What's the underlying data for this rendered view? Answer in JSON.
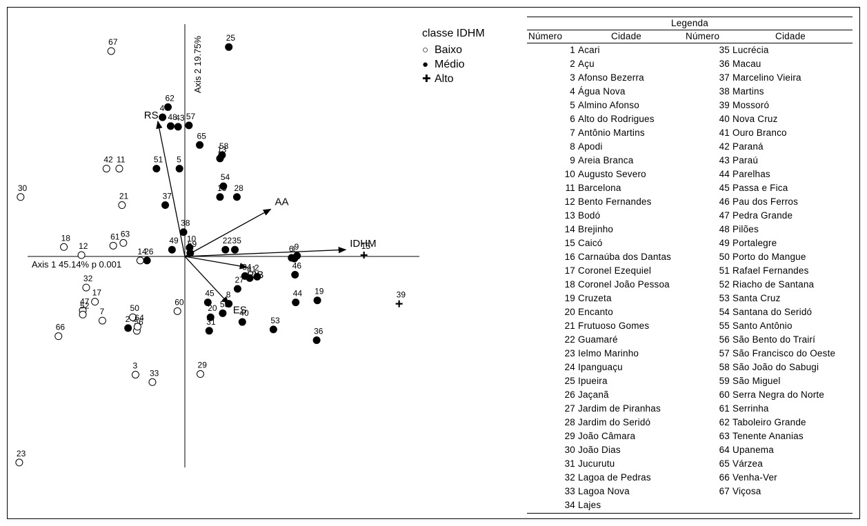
{
  "chart_data": {
    "type": "scatter",
    "title": "",
    "xlabel": "Axis 1 45.14% p 0.001",
    "ylabel": "Axis 2 19.75%",
    "legend_title": "classe IDHM",
    "legend": [
      {
        "name": "Baixo",
        "marker": "open-circle"
      },
      {
        "name": "Médio",
        "marker": "filled-circle"
      },
      {
        "name": "Alto",
        "marker": "plus"
      }
    ],
    "points": [
      {
        "label": "1",
        "x": 1.62,
        "y": -0.03,
        "class": "Médio"
      },
      {
        "label": "2",
        "x": 1.07,
        "y": -0.3,
        "class": "Médio"
      },
      {
        "label": "3",
        "x": -0.73,
        "y": -1.75,
        "class": "Baixo"
      },
      {
        "label": "4",
        "x": -0.33,
        "y": 2.06,
        "class": "Médio"
      },
      {
        "label": "5",
        "x": -0.08,
        "y": 1.3,
        "class": "Médio"
      },
      {
        "label": "6",
        "x": 1.58,
        "y": -0.02,
        "class": "Médio"
      },
      {
        "label": "7",
        "x": -1.22,
        "y": -0.95,
        "class": "Baixo"
      },
      {
        "label": "8",
        "x": 0.65,
        "y": -0.7,
        "class": "Médio"
      },
      {
        "label": "9",
        "x": 1.66,
        "y": 0.01,
        "class": "Médio"
      },
      {
        "label": "10",
        "x": 0.07,
        "y": 0.13,
        "class": "Médio"
      },
      {
        "label": "11",
        "x": -0.97,
        "y": 1.3,
        "class": "Baixo"
      },
      {
        "label": "12",
        "x": -1.53,
        "y": 0.02,
        "class": "Baixo"
      },
      {
        "label": "13",
        "x": 0.52,
        "y": 1.45,
        "class": "Médio"
      },
      {
        "label": "14",
        "x": -0.66,
        "y": -0.06,
        "class": "Baixo"
      },
      {
        "label": "15",
        "x": 2.65,
        "y": 0.02,
        "class": "Alto"
      },
      {
        "label": "16",
        "x": 0.52,
        "y": 0.88,
        "class": "Médio"
      },
      {
        "label": "17",
        "x": -1.33,
        "y": -0.67,
        "class": "Baixo"
      },
      {
        "label": "18",
        "x": -1.79,
        "y": 0.14,
        "class": "Baixo"
      },
      {
        "label": "19",
        "x": 1.96,
        "y": -0.65,
        "class": "Médio"
      },
      {
        "label": "20",
        "x": 0.38,
        "y": -0.9,
        "class": "Médio"
      },
      {
        "label": "21",
        "x": -0.93,
        "y": 0.76,
        "class": "Baixo"
      },
      {
        "label": "22",
        "x": 0.6,
        "y": 0.1,
        "class": "Médio"
      },
      {
        "label": "23",
        "x": -2.45,
        "y": -3.05,
        "class": "Baixo"
      },
      {
        "label": "24",
        "x": -0.84,
        "y": -1.06,
        "class": "Médio"
      },
      {
        "label": "25",
        "x": 0.65,
        "y": 3.1,
        "class": "Médio"
      },
      {
        "label": "26",
        "x": -0.56,
        "y": -0.06,
        "class": "Médio"
      },
      {
        "label": "27",
        "x": 0.78,
        "y": -0.48,
        "class": "Médio"
      },
      {
        "label": "28",
        "x": 0.77,
        "y": 0.88,
        "class": "Médio"
      },
      {
        "label": "29",
        "x": 0.23,
        "y": -1.74,
        "class": "Baixo"
      },
      {
        "label": "30",
        "x": -2.43,
        "y": 0.88,
        "class": "Baixo"
      },
      {
        "label": "31",
        "x": 0.36,
        "y": -1.1,
        "class": "Médio"
      },
      {
        "label": "32",
        "x": -1.46,
        "y": -0.46,
        "class": "Baixo"
      },
      {
        "label": "33",
        "x": -0.48,
        "y": -1.86,
        "class": "Baixo"
      },
      {
        "label": "34",
        "x": 0.89,
        "y": -0.29,
        "class": "Médio"
      },
      {
        "label": "35",
        "x": 0.74,
        "y": 0.1,
        "class": "Médio"
      },
      {
        "label": "36",
        "x": 1.95,
        "y": -1.24,
        "class": "Médio"
      },
      {
        "label": "37",
        "x": -0.29,
        "y": 0.76,
        "class": "Médio"
      },
      {
        "label": "38",
        "x": -0.02,
        "y": 0.36,
        "class": "Médio"
      },
      {
        "label": "39",
        "x": 3.17,
        "y": -0.7,
        "class": "Alto"
      },
      {
        "label": "40",
        "x": 0.85,
        "y": -0.97,
        "class": "Médio"
      },
      {
        "label": "41",
        "x": 0.96,
        "y": -0.32,
        "class": "Médio"
      },
      {
        "label": "42",
        "x": -1.16,
        "y": 1.3,
        "class": "Baixo"
      },
      {
        "label": "43",
        "x": -0.1,
        "y": 1.92,
        "class": "Médio"
      },
      {
        "label": "44",
        "x": 1.64,
        "y": -0.68,
        "class": "Médio"
      },
      {
        "label": "45",
        "x": 0.34,
        "y": -0.68,
        "class": "Médio"
      },
      {
        "label": "46",
        "x": 1.63,
        "y": -0.27,
        "class": "Médio"
      },
      {
        "label": "47",
        "x": -1.51,
        "y": -0.8,
        "class": "Baixo"
      },
      {
        "label": "48",
        "x": -0.21,
        "y": 1.93,
        "class": "Médio"
      },
      {
        "label": "49",
        "x": -0.19,
        "y": 0.1,
        "class": "Médio"
      },
      {
        "label": "50",
        "x": -0.77,
        "y": -0.9,
        "class": "Baixo"
      },
      {
        "label": "51",
        "x": -0.42,
        "y": 1.3,
        "class": "Médio"
      },
      {
        "label": "52",
        "x": -1.51,
        "y": -0.86,
        "class": "Baixo"
      },
      {
        "label": "53",
        "x": 1.31,
        "y": -1.08,
        "class": "Médio"
      },
      {
        "label": "54",
        "x": 0.57,
        "y": 1.04,
        "class": "Médio"
      },
      {
        "label": "55",
        "x": 0.56,
        "y": -0.84,
        "class": "Médio"
      },
      {
        "label": "56",
        "x": -0.71,
        "y": -1.1,
        "class": "Baixo"
      },
      {
        "label": "57",
        "x": 0.06,
        "y": 1.94,
        "class": "Médio"
      },
      {
        "label": "58",
        "x": 0.55,
        "y": 1.5,
        "class": "Médio"
      },
      {
        "label": "59",
        "x": 0.08,
        "y": 0.05,
        "class": "Médio"
      },
      {
        "label": "60",
        "x": -0.11,
        "y": -0.81,
        "class": "Baixo"
      },
      {
        "label": "61",
        "x": -1.06,
        "y": 0.16,
        "class": "Baixo"
      },
      {
        "label": "62",
        "x": -0.25,
        "y": 2.21,
        "class": "Médio"
      },
      {
        "label": "63",
        "x": -0.91,
        "y": 0.2,
        "class": "Baixo"
      },
      {
        "label": "64",
        "x": -0.7,
        "y": -1.04,
        "class": "Baixo"
      },
      {
        "label": "65",
        "x": 0.22,
        "y": 1.65,
        "class": "Médio"
      },
      {
        "label": "66",
        "x": -1.87,
        "y": -1.18,
        "class": "Baixo"
      },
      {
        "label": "67",
        "x": -1.09,
        "y": 3.04,
        "class": "Baixo"
      }
    ],
    "vectors": [
      {
        "label": "RS",
        "x": -0.4,
        "y": 2.0
      },
      {
        "label": "AA",
        "x": 1.27,
        "y": 0.7
      },
      {
        "label": "IDHM",
        "x": 2.38,
        "y": 0.1
      },
      {
        "label": "PIB",
        "x": 0.92,
        "y": -0.16
      },
      {
        "label": "ES",
        "x": 0.65,
        "y": -0.7
      }
    ]
  },
  "legenda": {
    "title": "Legenda",
    "col_numero": "Número",
    "col_cidade": "Cidade",
    "entries": [
      {
        "n": "1",
        "city": "Acari"
      },
      {
        "n": "2",
        "city": "Açu"
      },
      {
        "n": "3",
        "city": "Afonso Bezerra"
      },
      {
        "n": "4",
        "city": "Água Nova"
      },
      {
        "n": "5",
        "city": "Almino Afonso"
      },
      {
        "n": "6",
        "city": "Alto do Rodrigues"
      },
      {
        "n": "7",
        "city": "Antônio Martins"
      },
      {
        "n": "8",
        "city": "Apodi"
      },
      {
        "n": "9",
        "city": "Areia Branca"
      },
      {
        "n": "10",
        "city": "Augusto Severo"
      },
      {
        "n": "11",
        "city": "Barcelona"
      },
      {
        "n": "12",
        "city": "Bento Fernandes"
      },
      {
        "n": "13",
        "city": "Bodó"
      },
      {
        "n": "14",
        "city": "Brejinho"
      },
      {
        "n": "15",
        "city": "Caicó"
      },
      {
        "n": "16",
        "city": "Carnaúba dos Dantas"
      },
      {
        "n": "17",
        "city": "Coronel Ezequiel"
      },
      {
        "n": "18",
        "city": "Coronel João Pessoa"
      },
      {
        "n": "19",
        "city": "Cruzeta"
      },
      {
        "n": "20",
        "city": "Encanto"
      },
      {
        "n": "21",
        "city": "Frutuoso Gomes"
      },
      {
        "n": "22",
        "city": "Guamaré"
      },
      {
        "n": "23",
        "city": "Ielmo Marinho"
      },
      {
        "n": "24",
        "city": "Ipanguaçu"
      },
      {
        "n": "25",
        "city": "Ipueira"
      },
      {
        "n": "26",
        "city": "Jaçanã"
      },
      {
        "n": "27",
        "city": "Jardim de Piranhas"
      },
      {
        "n": "28",
        "city": "Jardim do Seridó"
      },
      {
        "n": "29",
        "city": "João Câmara"
      },
      {
        "n": "30",
        "city": "João Dias"
      },
      {
        "n": "31",
        "city": "Jucurutu"
      },
      {
        "n": "32",
        "city": "Lagoa de Pedras"
      },
      {
        "n": "33",
        "city": "Lagoa Nova"
      },
      {
        "n": "34",
        "city": "Lajes"
      },
      {
        "n": "35",
        "city": "Lucrécia"
      },
      {
        "n": "36",
        "city": "Macau"
      },
      {
        "n": "37",
        "city": "Marcelino Vieira"
      },
      {
        "n": "38",
        "city": "Martins"
      },
      {
        "n": "39",
        "city": "Mossoró"
      },
      {
        "n": "40",
        "city": "Nova Cruz"
      },
      {
        "n": "41",
        "city": "Ouro Branco"
      },
      {
        "n": "42",
        "city": "Paraná"
      },
      {
        "n": "43",
        "city": "Paraú"
      },
      {
        "n": "44",
        "city": "Parelhas"
      },
      {
        "n": "45",
        "city": "Passa e Fica"
      },
      {
        "n": "46",
        "city": "Pau dos Ferros"
      },
      {
        "n": "47",
        "city": "Pedra Grande"
      },
      {
        "n": "48",
        "city": "Pilões"
      },
      {
        "n": "49",
        "city": "Portalegre"
      },
      {
        "n": "50",
        "city": "Porto do Mangue"
      },
      {
        "n": "51",
        "city": "Rafael Fernandes"
      },
      {
        "n": "52",
        "city": "Riacho de Santana"
      },
      {
        "n": "53",
        "city": "Santa Cruz"
      },
      {
        "n": "54",
        "city": "Santana do Seridó"
      },
      {
        "n": "55",
        "city": "Santo Antônio"
      },
      {
        "n": "56",
        "city": "São Bento do Trairí"
      },
      {
        "n": "57",
        "city": "São Francisco do Oeste"
      },
      {
        "n": "58",
        "city": "São João do Sabugi"
      },
      {
        "n": "59",
        "city": "São Miguel"
      },
      {
        "n": "60",
        "city": "Serra Negra do Norte"
      },
      {
        "n": "61",
        "city": "Serrinha"
      },
      {
        "n": "62",
        "city": "Taboleiro Grande"
      },
      {
        "n": "63",
        "city": "Tenente Ananias"
      },
      {
        "n": "64",
        "city": "Upanema"
      },
      {
        "n": "65",
        "city": "Várzea"
      },
      {
        "n": "66",
        "city": "Venha-Ver"
      },
      {
        "n": "67",
        "city": "Viçosa"
      }
    ]
  }
}
